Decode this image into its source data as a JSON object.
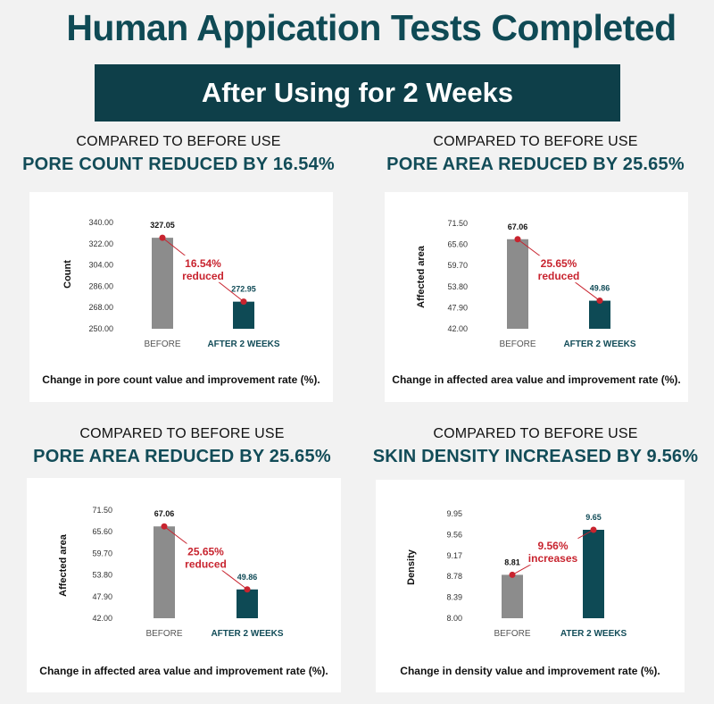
{
  "title": "Human Appication Tests Completed",
  "banner": "After Using for 2 Weeks",
  "colors": {
    "title": "#0f4a55",
    "banner_bg": "#0e3f49",
    "bar_before": "#8c8c8c",
    "bar_after": "#0e4a55",
    "annotation": "#c8242f"
  },
  "panels": [
    {
      "subtitle": "COMPARED TO BEFORE USE",
      "headline": "PORE COUNT REDUCED BY 16.54%",
      "caption": "Change in pore count value and improvement rate (%).",
      "chart_data": {
        "type": "bar",
        "ylabel": "Count",
        "yticks": [
          "250.00",
          "268.00",
          "286.00",
          "304.00",
          "322.00",
          "340.00"
        ],
        "ylim": [
          250,
          340
        ],
        "categories": [
          "BEFORE",
          "AFTER 2 WEEKS"
        ],
        "values": [
          327.05,
          272.95
        ],
        "value_labels": [
          "327.05",
          "272.95"
        ],
        "annotation": [
          "16.54%",
          "reduced"
        ]
      }
    },
    {
      "subtitle": "COMPARED TO BEFORE USE",
      "headline": "PORE AREA REDUCED BY 25.65%",
      "caption": "Change in affected area value and improvement rate (%).",
      "chart_data": {
        "type": "bar",
        "ylabel": "Affected area",
        "yticks": [
          "42.00",
          "47.90",
          "53.80",
          "59.70",
          "65.60",
          "71.50"
        ],
        "ylim": [
          42,
          71.5
        ],
        "categories": [
          "BEFORE",
          "AFTER 2 WEEKS"
        ],
        "values": [
          67.06,
          49.86
        ],
        "value_labels": [
          "67.06",
          "49.86"
        ],
        "annotation": [
          "25.65%",
          "reduced"
        ]
      }
    },
    {
      "subtitle": "COMPARED TO BEFORE USE",
      "headline": "PORE AREA REDUCED BY 25.65%",
      "caption": "Change in affected area value and improvement rate (%).",
      "chart_data": {
        "type": "bar",
        "ylabel": "Affected area",
        "yticks": [
          "42.00",
          "47.90",
          "53.80",
          "59.70",
          "65.60",
          "71.50"
        ],
        "ylim": [
          42,
          71.5
        ],
        "categories": [
          "BEFORE",
          "AFTER 2 WEEKS"
        ],
        "values": [
          67.06,
          49.86
        ],
        "value_labels": [
          "67.06",
          "49.86"
        ],
        "annotation": [
          "25.65%",
          "reduced"
        ]
      }
    },
    {
      "subtitle": "COMPARED TO BEFORE USE",
      "headline": "SKIN DENSITY INCREASED BY 9.56%",
      "caption": "Change in density value and improvement rate (%).",
      "chart_data": {
        "type": "bar",
        "ylabel": "Density",
        "yticks": [
          "8.00",
          "8.39",
          "8.78",
          "9.17",
          "9.56",
          "9.95"
        ],
        "ylim": [
          8,
          9.95
        ],
        "categories": [
          "BEFORE",
          "ATER 2 WEEKS"
        ],
        "values": [
          8.81,
          9.65
        ],
        "value_labels": [
          "8.81",
          "9.65"
        ],
        "annotation": [
          "9.56%",
          "increases"
        ]
      }
    }
  ]
}
